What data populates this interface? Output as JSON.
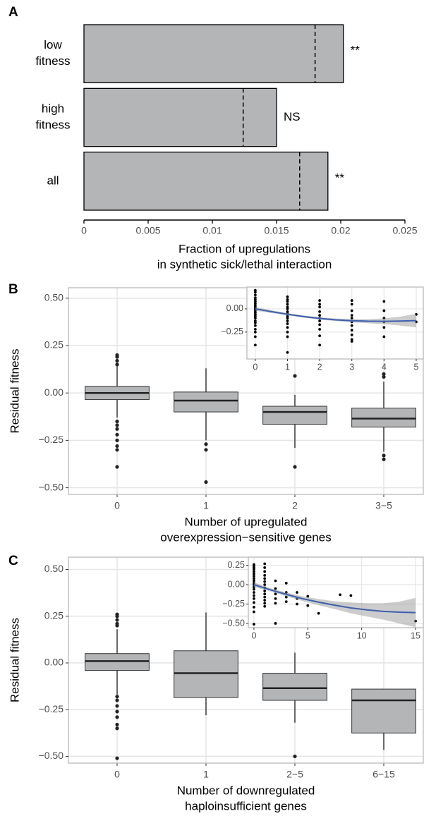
{
  "chart_data": [
    {
      "type": "bar",
      "panel": "A",
      "orientation": "horizontal",
      "categories": [
        [
          "low",
          "fitness"
        ],
        [
          "high",
          "fitness"
        ],
        [
          "all"
        ]
      ],
      "values": [
        0.0202,
        0.015,
        0.019
      ],
      "expected": [
        0.018,
        0.0124,
        0.0168
      ],
      "annotations": [
        "**",
        "NS",
        "**"
      ],
      "color": "#b3b5b7",
      "xlim": [
        0,
        0.025
      ],
      "xticks": [
        0,
        0.005,
        0.01,
        0.015,
        0.02,
        0.025
      ],
      "xlabel": [
        "Fraction of upregulations",
        "in synthetic sick/lethal interaction"
      ]
    },
    {
      "type": "box",
      "panel": "B",
      "categories": [
        "0",
        "1",
        "2",
        "3−5"
      ],
      "boxes": [
        {
          "low": -0.13,
          "q1": -0.035,
          "median": 0.0,
          "q3": 0.035,
          "high": 0.14,
          "outliers": [
            0.2,
            0.19,
            0.17,
            0.15,
            -0.15,
            -0.17,
            -0.19,
            -0.22,
            -0.25,
            -0.28,
            -0.3,
            -0.39
          ]
        },
        {
          "low": -0.25,
          "q1": -0.1,
          "median": -0.04,
          "q3": 0.005,
          "high": 0.13,
          "outliers": [
            -0.27,
            -0.3,
            -0.47
          ]
        },
        {
          "low": -0.29,
          "q1": -0.165,
          "median": -0.1,
          "q3": -0.07,
          "high": -0.01,
          "outliers": [
            0.09,
            -0.39
          ]
        },
        {
          "low": -0.31,
          "q1": -0.18,
          "median": -0.135,
          "q3": -0.08,
          "high": 0.06,
          "outliers": [
            0.1,
            0.085,
            -0.33,
            -0.35
          ]
        }
      ],
      "color": "#b3b5b7",
      "ylim": [
        -0.535,
        0.555
      ],
      "yticks": [
        {
          "value": 0.5,
          "label": "0.50"
        },
        {
          "value": 0.25,
          "label": "0.25"
        },
        {
          "value": 0,
          "label": "0.00"
        },
        {
          "value": -0.25,
          "label": "−0.25"
        },
        {
          "value": -0.5,
          "label": "−0.50"
        }
      ],
      "ylabel": "Residual fitness",
      "xlabel": [
        "Number of upregulated",
        "overexpression−sensitive genes"
      ],
      "grid": true
    },
    {
      "type": "scatter",
      "x": [
        0,
        0,
        0,
        0,
        0,
        0,
        0,
        0,
        0,
        0,
        0,
        0,
        0,
        0,
        0,
        0,
        0,
        0,
        0,
        0,
        0,
        0,
        1,
        1,
        1,
        1,
        1,
        1,
        1,
        1,
        1,
        1,
        1,
        1,
        1,
        1,
        1,
        1,
        2,
        2,
        2,
        2,
        2,
        2,
        2,
        2,
        2,
        2,
        2,
        3,
        3,
        3,
        3,
        3,
        3,
        3,
        3,
        3,
        3,
        3,
        4,
        4,
        4,
        4,
        4,
        4,
        5,
        5
      ],
      "y": [
        0.2,
        0.18,
        0.15,
        0.12,
        0.1,
        0.08,
        0.06,
        0.04,
        0.02,
        0,
        -0.02,
        -0.04,
        -0.06,
        -0.08,
        -0.1,
        -0.13,
        -0.15,
        -0.18,
        -0.22,
        -0.25,
        -0.3,
        -0.39,
        0.13,
        0.1,
        0.08,
        0.05,
        0.02,
        0,
        -0.03,
        -0.05,
        -0.08,
        -0.1,
        -0.13,
        -0.16,
        -0.2,
        -0.25,
        -0.3,
        -0.47,
        0.09,
        0.05,
        0.02,
        -0.03,
        -0.07,
        -0.1,
        -0.13,
        -0.17,
        -0.22,
        -0.29,
        -0.39,
        0.09,
        0.05,
        -0.02,
        -0.07,
        -0.1,
        -0.14,
        -0.18,
        -0.23,
        -0.28,
        -0.33,
        -0.35,
        0.08,
        -0.02,
        -0.1,
        -0.14,
        -0.2,
        -0.3,
        -0.06,
        -0.14
      ],
      "fit": {
        "color": "#3e5fae",
        "x": [
          0,
          0.5,
          1,
          1.5,
          2,
          2.5,
          3,
          3.5,
          4,
          4.5,
          5
        ],
        "y": [
          0,
          -0.03,
          -0.058,
          -0.083,
          -0.103,
          -0.118,
          -0.128,
          -0.133,
          -0.134,
          -0.132,
          -0.127
        ],
        "lower": [
          -0.02,
          -0.045,
          -0.07,
          -0.095,
          -0.115,
          -0.132,
          -0.145,
          -0.155,
          -0.165,
          -0.18,
          -0.2
        ],
        "upper": [
          0.02,
          -0.015,
          -0.046,
          -0.071,
          -0.091,
          -0.104,
          -0.111,
          -0.111,
          -0.103,
          -0.084,
          -0.054
        ]
      },
      "xlim": [
        -0.26,
        5.22
      ],
      "ylim": [
        -0.54,
        0.235
      ],
      "xticks": [
        0,
        1,
        2,
        3,
        4,
        5
      ],
      "yticks": [
        {
          "value": 0,
          "label": "0.00"
        },
        {
          "value": -0.25,
          "label": "−0.25"
        }
      ],
      "grid": true
    },
    {
      "type": "box",
      "panel": "C",
      "categories": [
        "0",
        "1",
        "2−5",
        "6−15"
      ],
      "boxes": [
        {
          "low": -0.17,
          "q1": -0.04,
          "median": 0.01,
          "q3": 0.05,
          "high": 0.18,
          "outliers": [
            0.26,
            0.25,
            0.23,
            0.21,
            0.2,
            -0.18,
            -0.2,
            -0.23,
            -0.26,
            -0.29,
            -0.33,
            -0.35,
            -0.51
          ]
        },
        {
          "low": -0.28,
          "q1": -0.185,
          "median": -0.055,
          "q3": 0.065,
          "high": 0.27,
          "outliers": []
        },
        {
          "low": -0.32,
          "q1": -0.2,
          "median": -0.135,
          "q3": -0.055,
          "high": 0.055,
          "outliers": [
            -0.5
          ]
        },
        {
          "low": -0.465,
          "q1": -0.375,
          "median": -0.2,
          "q3": -0.14,
          "high": -0.14,
          "outliers": []
        }
      ],
      "color": "#b3b5b7",
      "ylim": [
        -0.536,
        0.566
      ],
      "yticks": [
        {
          "value": 0.5,
          "label": "0.50"
        },
        {
          "value": 0.25,
          "label": "0.25"
        },
        {
          "value": 0,
          "label": "0.00"
        },
        {
          "value": -0.25,
          "label": "−0.25"
        },
        {
          "value": -0.5,
          "label": "−0.50"
        }
      ],
      "ylabel": "Residual fitness",
      "xlabel": [
        "Number of downregulated",
        "haploinsufficient genes"
      ],
      "grid": true
    },
    {
      "type": "scatter",
      "x": [
        0,
        0,
        0,
        0,
        0,
        0,
        0,
        0,
        0,
        0,
        0,
        0,
        0,
        0,
        0,
        0,
        0,
        0,
        0,
        0,
        1,
        1,
        1,
        1,
        1,
        1,
        1,
        1,
        1,
        1,
        1,
        1,
        1,
        1,
        2,
        2,
        2,
        2,
        2,
        2,
        3,
        3,
        3,
        3,
        4,
        4,
        4,
        5,
        5,
        6,
        8,
        9,
        15
      ],
      "y": [
        0.26,
        0.24,
        0.22,
        0.2,
        0.17,
        0.14,
        0.11,
        0.08,
        0.05,
        0.02,
        0,
        -0.03,
        -0.06,
        -0.1,
        -0.14,
        -0.18,
        -0.23,
        -0.29,
        -0.35,
        -0.51,
        0.27,
        0.22,
        0.17,
        0.12,
        0.08,
        0.04,
        0,
        -0.04,
        -0.08,
        -0.12,
        -0.16,
        -0.2,
        -0.24,
        -0.28,
        0.05,
        -0.05,
        -0.12,
        -0.18,
        -0.24,
        -0.5,
        0.02,
        -0.1,
        -0.16,
        -0.22,
        -0.1,
        -0.18,
        -0.25,
        -0.15,
        -0.27,
        -0.37,
        -0.13,
        -0.14,
        -0.47
      ],
      "fit": {
        "color": "#3e5fae",
        "x": [
          0,
          1.5,
          3,
          4.5,
          6,
          7.5,
          9,
          10.5,
          12,
          13.5,
          15
        ],
        "y": [
          0,
          -0.065,
          -0.125,
          -0.18,
          -0.225,
          -0.265,
          -0.3,
          -0.325,
          -0.345,
          -0.355,
          -0.36
        ],
        "lower": [
          -0.03,
          -0.085,
          -0.15,
          -0.21,
          -0.265,
          -0.315,
          -0.37,
          -0.41,
          -0.45,
          -0.5,
          -0.55
        ],
        "upper": [
          0.03,
          -0.045,
          -0.1,
          -0.15,
          -0.185,
          -0.215,
          -0.23,
          -0.24,
          -0.24,
          -0.22,
          -0.17
        ]
      },
      "xlim": [
        -0.52,
        15.72
      ],
      "ylim": [
        -0.555,
        0.355
      ],
      "xticks": [
        0,
        5,
        10,
        15
      ],
      "yticks": [
        {
          "value": 0.25,
          "label": "0.25"
        },
        {
          "value": 0,
          "label": "0.00"
        },
        {
          "value": -0.25,
          "label": "−0.25"
        },
        {
          "value": -0.5,
          "label": "−0.50"
        }
      ],
      "grid": true
    }
  ]
}
